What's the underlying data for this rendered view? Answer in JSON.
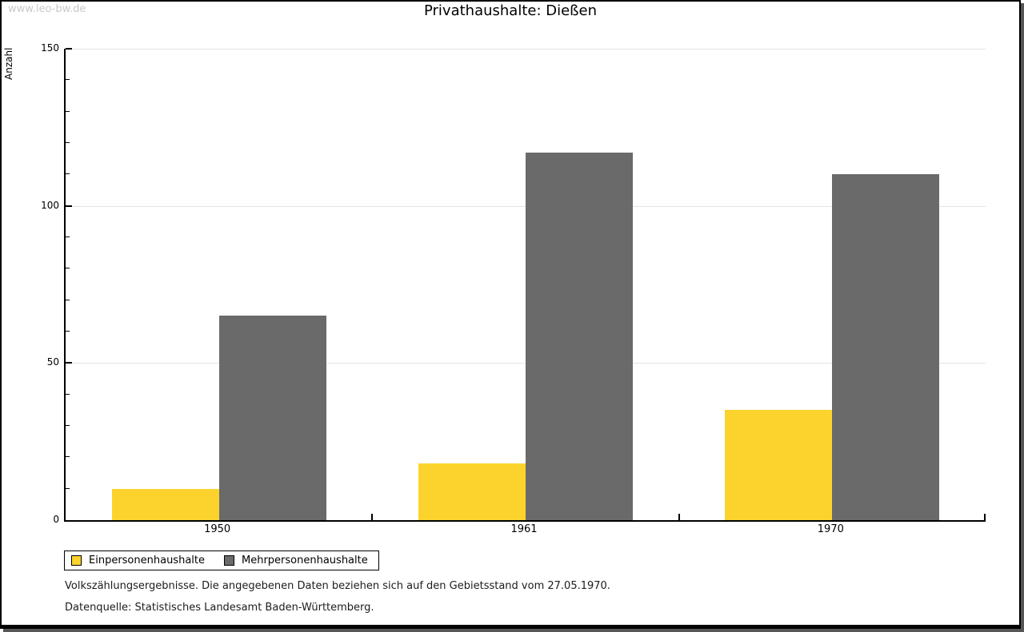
{
  "watermark": "www.leo-bw.de",
  "title": "Privathaushalte: Dießen",
  "chart_data": {
    "type": "bar",
    "title": "Privathaushalte: Dießen",
    "categories": [
      "1950",
      "1961",
      "1970"
    ],
    "series": [
      {
        "name": "Einpersonenhaushalte",
        "color": "#FCD32D",
        "values": [
          10,
          18,
          35
        ]
      },
      {
        "name": "Mehrpersonenhaushalte",
        "color": "#6A6A6A",
        "values": [
          65,
          117,
          110
        ]
      }
    ],
    "xlabel": "",
    "ylabel": "Anzahl",
    "ylim": [
      0,
      150
    ],
    "yticks_major": [
      0,
      50,
      100,
      150
    ],
    "ytick_minor_step": 10,
    "gridlines": [
      50,
      100,
      150
    ],
    "grid": true,
    "legend_position": "bottom-left"
  },
  "colors": {
    "series_einpersonenhaushalte": "#FCD32D",
    "series_mehrpersonenhaushalte": "#6A6A6A",
    "gridline": "#e4e4e4",
    "frame_border": "#000000",
    "frame_shadow": "#565656",
    "watermark_text": "#c9c9c9"
  },
  "footnotes": [
    "Volkszählungsergebnisse. Die angegebenen Daten beziehen sich auf den Gebietsstand vom 27.05.1970.",
    "Datenquelle: Statistisches Landesamt Baden-Württemberg."
  ]
}
